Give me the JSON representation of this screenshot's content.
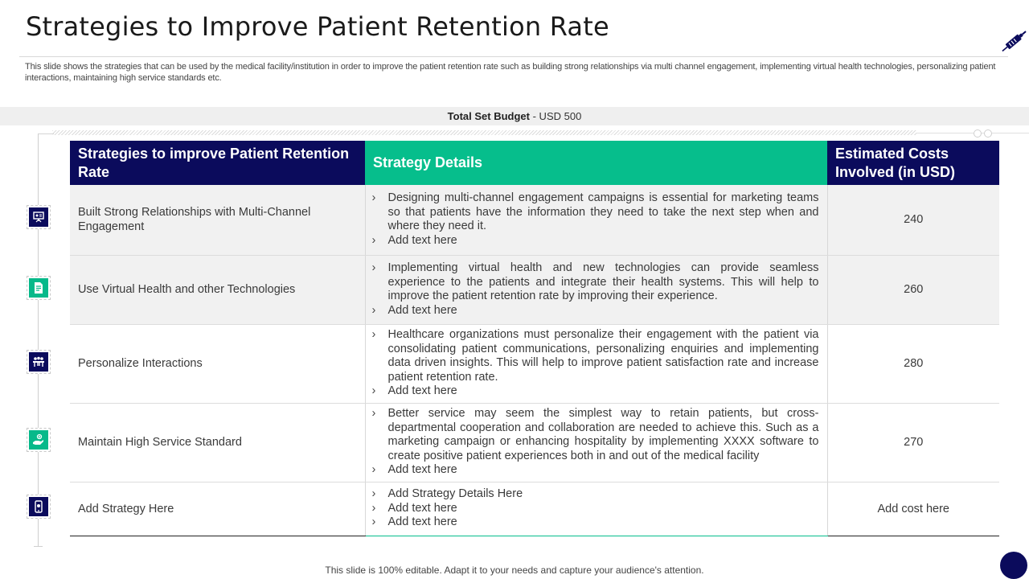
{
  "page": {
    "title": "Strategies to Improve Patient Retention Rate",
    "subtitle": "This slide shows the strategies that can be used by the medical facility/institution in order to improve the patient retention rate such as building strong relationships via multi channel engagement, implementing virtual health technologies, personalizing patient interactions, maintaining high service standards etc.",
    "footer": "This slide is 100% editable. Adapt it to your needs and capture your audience's attention."
  },
  "budget": {
    "label": "Total Set Budget",
    "value": "- USD 500"
  },
  "table": {
    "headers": {
      "strategy": "Strategies to improve Patient Retention Rate",
      "details": "Strategy Details",
      "costs": "Estimated Costs Involved (in USD)"
    },
    "rows": [
      {
        "strategy": "Built Strong Relationships with Multi-Channel Engagement",
        "details": [
          "Designing multi-channel engagement campaigns is essential for marketing teams so that patients have the information they need to take the next step when and where they need it.",
          "Add text here"
        ],
        "cost": "240",
        "icon": "presentation-board-icon"
      },
      {
        "strategy": "Use Virtual Health and other Technologies",
        "details": [
          "Implementing virtual health and new technologies can provide seamless experience to the patients and integrate their health systems. This will help to improve the patient retention rate by improving their experience.",
          "Add text here"
        ],
        "cost": "260",
        "icon": "document-icon"
      },
      {
        "strategy": "Personalize Interactions",
        "details": [
          "Healthcare organizations must personalize their engagement with the patient via consolidating patient communications, personalizing enquiries and implementing data driven insights. This will help to improve patient satisfaction rate and increase patient retention rate.",
          "Add text here"
        ],
        "cost": "280",
        "icon": "team-meeting-icon"
      },
      {
        "strategy": "Maintain High Service Standard",
        "details": [
          "Better service may seem the simplest way to retain patients, but cross-departmental cooperation and collaboration are needed to achieve this. Such as a marketing campaign or enhancing hospitality by implementing XXXX software to create positive patient experiences both in and out of the medical facility",
          "Add text here"
        ],
        "cost": "270",
        "icon": "hand-service-icon"
      },
      {
        "strategy": "Add Strategy Here",
        "details": [
          "Add Strategy Details Here",
          "Add text here",
          "Add text here"
        ],
        "cost": "Add cost here",
        "icon": "mobile-device-icon"
      }
    ]
  },
  "colors": {
    "navy": "#0b0b5c",
    "green": "#06be8c",
    "shaded_row": "#f1f1f1"
  }
}
